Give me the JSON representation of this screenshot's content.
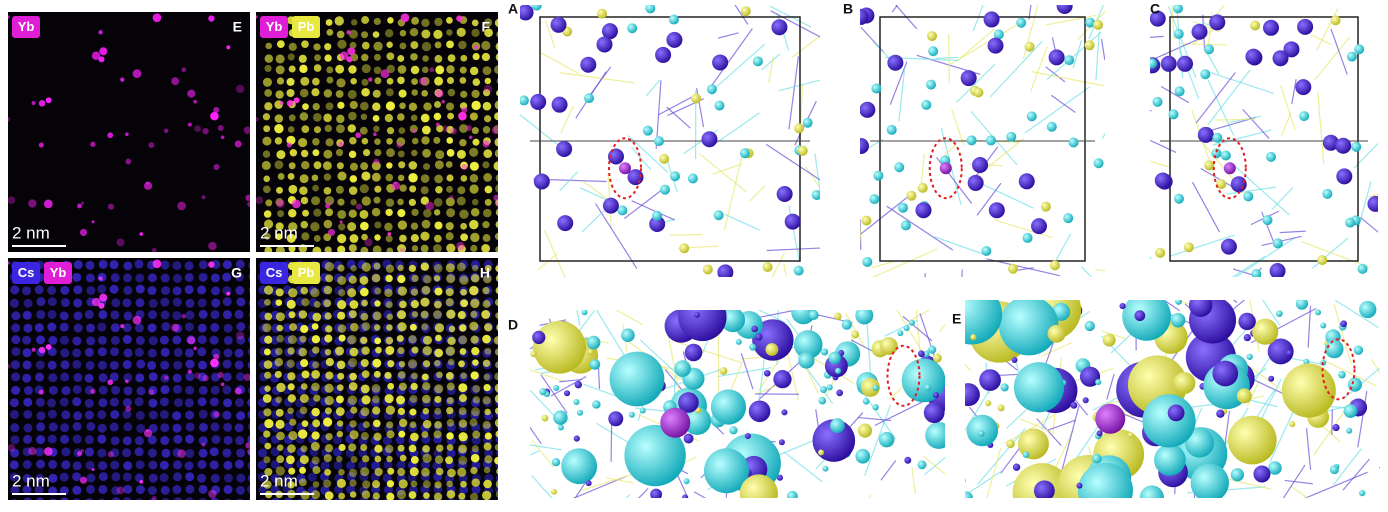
{
  "maps": [
    {
      "label": "E",
      "badges": [
        "Yb"
      ],
      "scale_bar": "2 nm"
    },
    {
      "label": "F",
      "badges": [
        "Yb",
        "Pb"
      ],
      "scale_bar": "2 nm"
    },
    {
      "label": "G",
      "badges": [
        "Cs",
        "Yb"
      ],
      "scale_bar": "2 nm"
    },
    {
      "label": "H",
      "badges": [
        "Cs",
        "Pb"
      ],
      "scale_bar": "2 nm"
    }
  ],
  "structures": [
    {
      "label": "A"
    },
    {
      "label": "B"
    },
    {
      "label": "C"
    },
    {
      "label": "D"
    },
    {
      "label": "E"
    }
  ]
}
